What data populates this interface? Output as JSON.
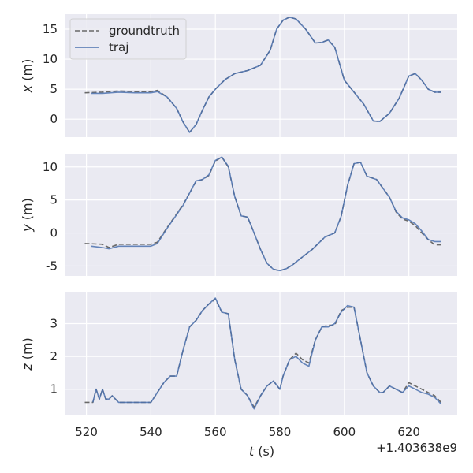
{
  "chart_data": {
    "type": "line",
    "shared_x": true,
    "x_offset_label": "+1.403638e9",
    "x_ticks": [
      520,
      540,
      560,
      580,
      600,
      620
    ],
    "xlim": [
      513.5,
      635
    ],
    "xlabel_var": "t",
    "xlabel_unit": " (s)",
    "legend": {
      "location": "upper-left",
      "entries": [
        "groundtruth",
        "traj"
      ]
    },
    "grid": true,
    "colors": {
      "background": "#eaeaf2",
      "grid": "#ffffff",
      "groundtruth": "#696969",
      "traj": "#4c72b0",
      "text": "#262626"
    },
    "subplots": [
      {
        "ylabel_var": "x",
        "ylabel_unit": " (m)",
        "ylim": [
          -3,
          17.5
        ],
        "yticks": [
          0,
          5,
          10,
          15
        ],
        "series": [
          {
            "name": "groundtruth",
            "style": "dashed",
            "x": [
              519.5,
              525,
              530,
              535,
              540,
              542,
              545,
              548,
              550,
              552,
              554,
              556,
              558,
              560,
              563,
              566,
              570,
              574,
              577,
              579,
              581,
              583,
              585,
              588,
              591,
              593,
              595,
              597,
              600,
              603,
              606,
              609,
              611,
              614,
              617,
              620,
              622,
              624,
              626,
              628,
              630
            ],
            "y": [
              4.4,
              4.5,
              4.7,
              4.6,
              4.6,
              4.8,
              3.7,
              1.8,
              -0.5,
              -2.2,
              -0.9,
              1.5,
              3.7,
              5.0,
              6.6,
              7.6,
              8.1,
              9.0,
              11.5,
              15.0,
              16.5,
              17.0,
              16.7,
              15.0,
              12.7,
              12.8,
              13.2,
              12.0,
              6.5,
              4.5,
              2.5,
              -0.3,
              -0.4,
              1.0,
              3.5,
              7.2,
              7.6,
              6.5,
              5.0,
              4.5,
              4.5
            ]
          },
          {
            "name": "traj",
            "style": "solid",
            "x": [
              521.5,
              525,
              530,
              535,
              540,
              542,
              545,
              548,
              550,
              552,
              554,
              556,
              558,
              560,
              563,
              566,
              570,
              574,
              577,
              579,
              581,
              583,
              585,
              588,
              591,
              593,
              595,
              597,
              600,
              603,
              606,
              609,
              611,
              614,
              617,
              620,
              622,
              624,
              626,
              628,
              630
            ],
            "y": [
              4.3,
              4.3,
              4.5,
              4.4,
              4.4,
              4.6,
              3.7,
              1.8,
              -0.5,
              -2.2,
              -0.9,
              1.5,
              3.7,
              5.0,
              6.6,
              7.6,
              8.1,
              9.0,
              11.5,
              15.0,
              16.5,
              17.0,
              16.7,
              15.0,
              12.7,
              12.8,
              13.2,
              12.0,
              6.5,
              4.5,
              2.5,
              -0.3,
              -0.4,
              1.0,
              3.5,
              7.2,
              7.6,
              6.5,
              5.0,
              4.5,
              4.5
            ]
          }
        ]
      },
      {
        "ylabel_var": "y",
        "ylabel_unit": " (m)",
        "ylim": [
          -6.5,
          12
        ],
        "yticks": [
          -5,
          0,
          5,
          10
        ],
        "series": [
          {
            "name": "groundtruth",
            "style": "dashed",
            "x": [
              519.5,
              525,
              527,
              530,
              535,
              540,
              542,
              545,
              550,
              554,
              556,
              558,
              560,
              562,
              564,
              566,
              568,
              570,
              572,
              574,
              576,
              578,
              580,
              582,
              584,
              586,
              590,
              594,
              597,
              599,
              601,
              603,
              605,
              607,
              610,
              614,
              616,
              618,
              620,
              622,
              624,
              626,
              628,
              630
            ],
            "y": [
              -1.6,
              -1.7,
              -2.2,
              -1.7,
              -1.7,
              -1.7,
              -1.4,
              0.8,
              4.3,
              7.8,
              8.1,
              8.7,
              10.9,
              11.5,
              10.0,
              5.5,
              2.6,
              2.4,
              0.0,
              -2.5,
              -4.6,
              -5.5,
              -5.7,
              -5.4,
              -4.8,
              -4.0,
              -2.5,
              -0.6,
              0.0,
              2.5,
              7.2,
              10.5,
              10.7,
              8.6,
              8.1,
              5.4,
              3.2,
              2.1,
              1.8,
              1.1,
              0.0,
              -1.0,
              -1.8,
              -1.8
            ]
          },
          {
            "name": "traj",
            "style": "solid",
            "x": [
              521.5,
              525,
              527,
              530,
              535,
              540,
              542,
              545,
              550,
              554,
              556,
              558,
              560,
              562,
              564,
              566,
              568,
              570,
              572,
              574,
              576,
              578,
              580,
              582,
              584,
              586,
              590,
              594,
              597,
              599,
              601,
              603,
              605,
              607,
              610,
              614,
              616,
              618,
              620,
              622,
              624,
              626,
              628,
              630
            ],
            "y": [
              -2.0,
              -2.2,
              -2.4,
              -2.0,
              -2.0,
              -2.0,
              -1.6,
              0.7,
              4.2,
              7.9,
              8.1,
              8.8,
              11.0,
              11.5,
              10.1,
              5.5,
              2.6,
              2.4,
              0.0,
              -2.5,
              -4.6,
              -5.5,
              -5.7,
              -5.4,
              -4.8,
              -4.0,
              -2.5,
              -0.6,
              0.0,
              2.5,
              7.2,
              10.5,
              10.7,
              8.6,
              8.1,
              5.4,
              3.3,
              2.3,
              2.0,
              1.4,
              0.3,
              -1.0,
              -1.3,
              -1.3
            ]
          }
        ]
      },
      {
        "ylabel_var": "z",
        "ylabel_unit": " (m)",
        "ylim": [
          0.2,
          3.95
        ],
        "yticks": [
          1,
          2,
          3
        ],
        "series": [
          {
            "name": "groundtruth",
            "style": "dashed",
            "x": [
              519.5,
              522,
              523,
              524,
              525,
              526,
              527,
              528,
              530,
              531,
              535,
              540,
              542,
              544,
              546,
              548,
              550,
              552,
              554,
              556,
              558,
              560,
              562,
              564,
              566,
              568,
              570,
              572,
              574,
              576,
              578,
              580,
              581,
              583,
              585,
              587,
              589,
              591,
              593,
              595,
              597,
              599,
              601,
              603,
              605,
              607,
              609,
              611,
              612,
              614,
              616,
              618,
              620,
              622,
              624,
              626,
              628,
              630
            ],
            "y": [
              0.6,
              0.6,
              1.0,
              0.7,
              1.0,
              0.7,
              0.7,
              0.8,
              0.6,
              0.6,
              0.6,
              0.6,
              0.9,
              1.2,
              1.4,
              1.4,
              2.2,
              2.9,
              3.1,
              3.4,
              3.6,
              3.75,
              3.35,
              3.3,
              1.9,
              1.0,
              0.8,
              0.45,
              0.8,
              1.1,
              1.25,
              1.0,
              1.4,
              1.9,
              2.1,
              1.9,
              1.8,
              2.5,
              2.9,
              2.95,
              2.95,
              3.4,
              3.5,
              3.5,
              2.5,
              1.5,
              1.1,
              0.9,
              0.9,
              1.1,
              1.0,
              0.9,
              1.2,
              1.1,
              1.0,
              0.9,
              0.8,
              0.6
            ]
          },
          {
            "name": "traj",
            "style": "solid",
            "x": [
              522,
              523,
              524,
              525,
              526,
              527,
              528,
              530,
              531,
              535,
              540,
              542,
              544,
              546,
              548,
              550,
              552,
              554,
              556,
              558,
              560,
              562,
              564,
              566,
              568,
              570,
              572,
              574,
              576,
              578,
              580,
              581,
              583,
              585,
              587,
              589,
              591,
              593,
              595,
              597,
              599,
              601,
              603,
              605,
              607,
              609,
              611,
              612,
              614,
              616,
              618,
              620,
              622,
              624,
              626,
              628,
              630
            ],
            "y": [
              0.6,
              1.0,
              0.7,
              1.0,
              0.7,
              0.7,
              0.8,
              0.6,
              0.6,
              0.6,
              0.6,
              0.9,
              1.2,
              1.4,
              1.4,
              2.2,
              2.9,
              3.1,
              3.4,
              3.6,
              3.78,
              3.35,
              3.3,
              1.9,
              1.0,
              0.8,
              0.4,
              0.8,
              1.1,
              1.25,
              1.0,
              1.4,
              1.9,
              2.0,
              1.8,
              1.7,
              2.5,
              2.9,
              2.9,
              3.0,
              3.35,
              3.55,
              3.5,
              2.5,
              1.5,
              1.1,
              0.9,
              0.9,
              1.1,
              1.0,
              0.9,
              1.1,
              1.0,
              0.9,
              0.85,
              0.75,
              0.55
            ]
          }
        ]
      }
    ]
  }
}
